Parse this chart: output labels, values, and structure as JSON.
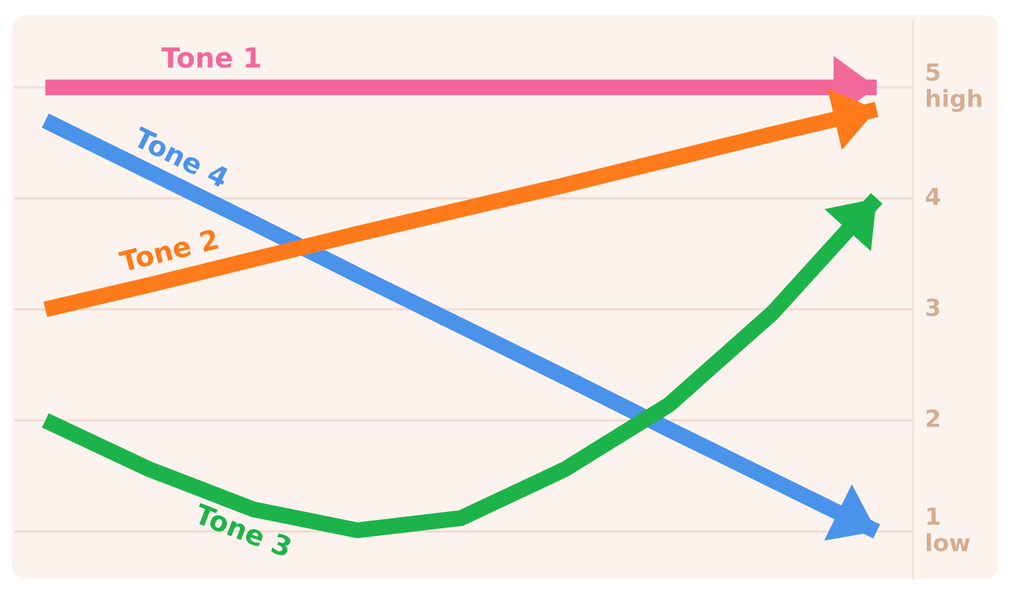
{
  "chart_data": {
    "type": "line",
    "categories": [
      null,
      null,
      null,
      null,
      null,
      null,
      null,
      null,
      null
    ],
    "series": [
      {
        "name": "Tone 1",
        "color": "#f2689a",
        "values": [
          5,
          5,
          5,
          5,
          5,
          5,
          5,
          5,
          5
        ]
      },
      {
        "name": "Tone 4",
        "color": "#4a93ea",
        "values": [
          4.7,
          4.24,
          3.78,
          3.31,
          2.85,
          2.39,
          1.92,
          1.46,
          1.0
        ]
      },
      {
        "name": "Tone 2",
        "color": "#ff7a1a",
        "values": [
          3.0,
          3.22,
          3.45,
          3.68,
          3.9,
          4.12,
          4.35,
          4.58,
          4.8
        ]
      },
      {
        "name": "Tone 3",
        "color": "#1db34b",
        "values": [
          2.0,
          1.56,
          1.2,
          1.01,
          1.12,
          1.56,
          2.14,
          2.97,
          4.0
        ]
      }
    ],
    "ylim": [
      0.57,
      5.6
    ],
    "yticks": [
      {
        "value": 1,
        "label": "1\nlow"
      },
      2,
      3,
      4,
      {
        "value": 5,
        "label": "5\nhigh"
      }
    ],
    "grid": "y",
    "tick_labels": "y",
    "marker": "none",
    "line_style": "solid"
  }
}
